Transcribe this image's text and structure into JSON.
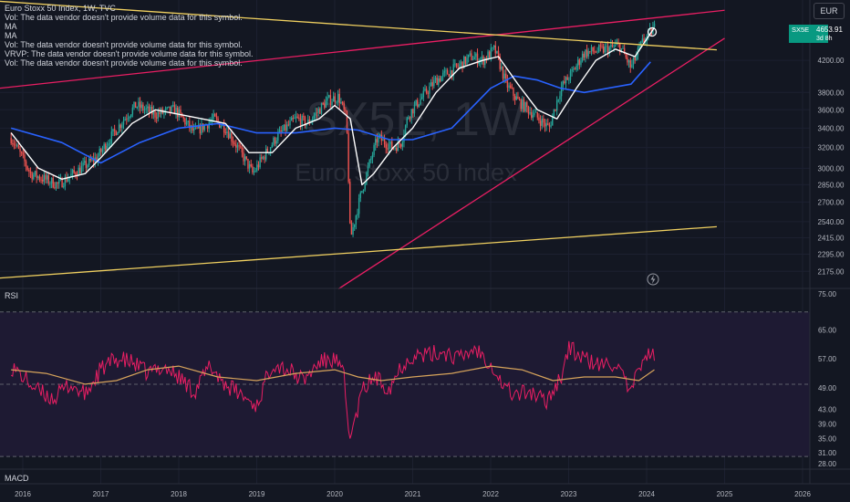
{
  "legend": {
    "symbol_line": "Euro Stoxx 50 Index, 1W, TVC",
    "vol1": "Vol: The data vendor doesn't provide volume data for this symbol.",
    "ma1": "MA",
    "ma2": "MA",
    "vol2": "Vol: The data vendor doesn't provide volume data for this symbol.",
    "vrvp": "VRVP: The data vendor doesn't provide volume data for this symbol.",
    "vol3": "Vol: The data vendor doesn't provide volume data for this symbol."
  },
  "currency_label": "EUR",
  "watermark": {
    "ticker": "SX5E, 1W",
    "name": "Euro Stoxx 50 Index"
  },
  "price_tag": {
    "symbol": "SX5E",
    "value": "4653.91",
    "countdown": "3d 8h"
  },
  "colors": {
    "background": "#131722",
    "candle_up": "#26a69a",
    "candle_down": "#ef5350",
    "ma_fast": "#ffffff",
    "ma_slow": "#2962ff",
    "trend_magenta": "#e91e63",
    "trend_yellow": "#f0d060",
    "rsi_line": "#e91e63",
    "rsi_ma": "#d6a35b",
    "rsi_band": "#1e1a33"
  },
  "rsi_label": "RSI",
  "macd_label": "MACD",
  "chart_data": {
    "type": "line",
    "title": "Euro Stoxx 50 Index, 1W, TVC",
    "x_axis": {
      "labels": [
        "2016",
        "2017",
        "2018",
        "2019",
        "2020",
        "2021",
        "2022",
        "2023",
        "2024",
        "2025",
        "2026"
      ]
    },
    "price_axis": {
      "scale": "log",
      "ticks": [
        2175,
        2295,
        2415,
        2540,
        2700,
        2850,
        3000,
        3200,
        3400,
        3600,
        3800,
        4200
      ],
      "range": [
        2080,
        4900
      ]
    },
    "price_series": {
      "name": "SX5E",
      "x": [
        2015.85,
        2016.1,
        2016.45,
        2016.75,
        2016.95,
        2017.3,
        2017.45,
        2017.7,
        2017.95,
        2018.2,
        2018.45,
        2018.6,
        2018.95,
        2019.25,
        2019.5,
        2019.65,
        2019.9,
        2020.05,
        2020.15,
        2020.2,
        2020.35,
        2020.55,
        2020.75,
        2020.85,
        2020.95,
        2021.3,
        2021.55,
        2021.75,
        2021.9,
        2022.05,
        2022.2,
        2022.35,
        2022.55,
        2022.75,
        2022.9,
        2023.05,
        2023.2,
        2023.5,
        2023.65,
        2023.8,
        2023.95,
        2024.1
      ],
      "values": [
        3300,
        2950,
        2850,
        3000,
        3100,
        3500,
        3650,
        3550,
        3600,
        3350,
        3500,
        3400,
        2950,
        3300,
        3500,
        3450,
        3700,
        3750,
        3500,
        2400,
        2800,
        3300,
        3200,
        3250,
        3550,
        3950,
        4100,
        4250,
        4200,
        4350,
        3900,
        3700,
        3550,
        3400,
        3850,
        4050,
        4300,
        4350,
        4400,
        4100,
        4450,
        4653.91
      ]
    },
    "ma_fast": {
      "x": [
        2015.85,
        2016.2,
        2016.5,
        2016.8,
        2017.0,
        2017.4,
        2017.7,
        2018.0,
        2018.3,
        2018.6,
        2018.9,
        2019.2,
        2019.5,
        2019.8,
        2020.0,
        2020.2,
        2020.35,
        2020.5,
        2020.75,
        2021.0,
        2021.3,
        2021.6,
        2021.9,
        2022.1,
        2022.35,
        2022.6,
        2022.85,
        2023.1,
        2023.35,
        2023.6,
        2023.85,
        2024.1
      ],
      "values": [
        3350,
        3000,
        2900,
        2950,
        3100,
        3450,
        3600,
        3550,
        3500,
        3450,
        3150,
        3150,
        3400,
        3500,
        3650,
        3500,
        2850,
        2950,
        3200,
        3400,
        3800,
        4100,
        4200,
        4250,
        3900,
        3600,
        3500,
        3850,
        4200,
        4350,
        4250,
        4653
      ]
    },
    "ma_slow": {
      "x": [
        2015.85,
        2016.5,
        2017.0,
        2017.5,
        2018.0,
        2018.5,
        2019.0,
        2019.5,
        2020.0,
        2020.3,
        2020.7,
        2021.0,
        2021.5,
        2022.0,
        2022.3,
        2022.6,
        2022.9,
        2023.2,
        2023.5,
        2023.8,
        2024.05
      ],
      "values": [
        3400,
        3250,
        3050,
        3250,
        3400,
        3450,
        3350,
        3350,
        3400,
        3380,
        3280,
        3280,
        3400,
        3850,
        4000,
        3950,
        3850,
        3800,
        3850,
        3900,
        4180
      ]
    },
    "trendlines": [
      {
        "name": "",
        "color": "#e91e63",
        "x": [
          2015.7,
          2025.0
        ],
        "values": [
          3850,
          4910
        ]
      },
      {
        "name": "",
        "color": "#e91e63",
        "x": [
          2020.05,
          2025.0
        ],
        "values": [
          2060,
          4500
        ]
      },
      {
        "name": "",
        "color": "#f0d060",
        "x": [
          2015.7,
          2024.9
        ],
        "values": [
          5050,
          4340
        ]
      },
      {
        "name": "",
        "color": "#f0d060",
        "x": [
          2015.7,
          2024.9
        ],
        "values": [
          2130,
          2500
        ]
      }
    ],
    "rsi_axis": {
      "ticks": [
        75.0,
        65.0,
        57.0,
        49.0,
        43.0,
        39.0,
        35.0,
        31.0,
        28.0
      ],
      "range": [
        27,
        76
      ],
      "bands": [
        70,
        30,
        50
      ]
    },
    "rsi_series": {
      "name": "RSI",
      "x": [
        2015.85,
        2016.0,
        2016.2,
        2016.4,
        2016.6,
        2016.8,
        2017.0,
        2017.2,
        2017.4,
        2017.6,
        2017.8,
        2018.0,
        2018.2,
        2018.4,
        2018.6,
        2018.8,
        2019.0,
        2019.2,
        2019.4,
        2019.6,
        2019.8,
        2020.0,
        2020.12,
        2020.17,
        2020.22,
        2020.35,
        2020.5,
        2020.7,
        2020.85,
        2021.0,
        2021.2,
        2021.4,
        2021.6,
        2021.8,
        2022.0,
        2022.15,
        2022.3,
        2022.5,
        2022.7,
        2022.9,
        2023.0,
        2023.2,
        2023.4,
        2023.6,
        2023.8,
        2023.95,
        2024.1
      ],
      "values": [
        55,
        52,
        48,
        46,
        50,
        47,
        54,
        57,
        56,
        53,
        55,
        52,
        48,
        55,
        50,
        47,
        44,
        56,
        54,
        51,
        56,
        57,
        52,
        38,
        36,
        48,
        52,
        49,
        55,
        58,
        58,
        59,
        57,
        60,
        56,
        50,
        47,
        48,
        45,
        52,
        60,
        57,
        55,
        56,
        47,
        58,
        58
      ]
    },
    "rsi_ma": {
      "x": [
        2015.85,
        2016.3,
        2016.8,
        2017.2,
        2017.6,
        2018.0,
        2018.5,
        2019.0,
        2019.5,
        2020.0,
        2020.3,
        2020.6,
        2021.0,
        2021.5,
        2022.0,
        2022.4,
        2022.8,
        2023.2,
        2023.6,
        2023.9,
        2024.1
      ],
      "values": [
        54,
        53,
        50,
        51,
        54,
        55,
        52,
        51,
        53,
        54,
        52,
        51,
        52,
        53,
        55,
        54,
        51,
        52,
        52,
        51,
        54
      ]
    }
  }
}
